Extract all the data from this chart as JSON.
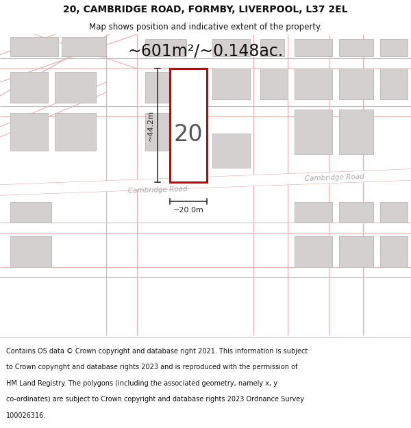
{
  "title_line1": "20, CAMBRIDGE ROAD, FORMBY, LIVERPOOL, L37 2EL",
  "title_line2": "Map shows position and indicative extent of the property.",
  "area_text": "~601m²/~0.148ac.",
  "property_number": "20",
  "dim_width": "~20.0m",
  "dim_height": "~44.2m",
  "road_label_right": "Cambridge Road",
  "road_label_left": "Cambridge Road",
  "footer_lines": [
    "Contains OS data © Crown copyright and database right 2021. This information is subject",
    "to Crown copyright and database rights 2023 and is reproduced with the permission of",
    "HM Land Registry. The polygons (including the associated geometry, namely x, y",
    "co-ordinates) are subject to Crown copyright and database rights 2023 Ordnance Survey",
    "100026316."
  ],
  "map_bg": "#faf8f8",
  "building_fill": "#d4d0d0",
  "building_edge": "#bbb5b5",
  "highlight_fill": "#ffffff",
  "highlight_edge": "#cc0000",
  "road_fill": "#f0eded",
  "street_color": "#e8aaaa",
  "dim_color": "#222222",
  "label_color": "#aaaaaa",
  "area_color": "#111111",
  "num_color": "#555555"
}
